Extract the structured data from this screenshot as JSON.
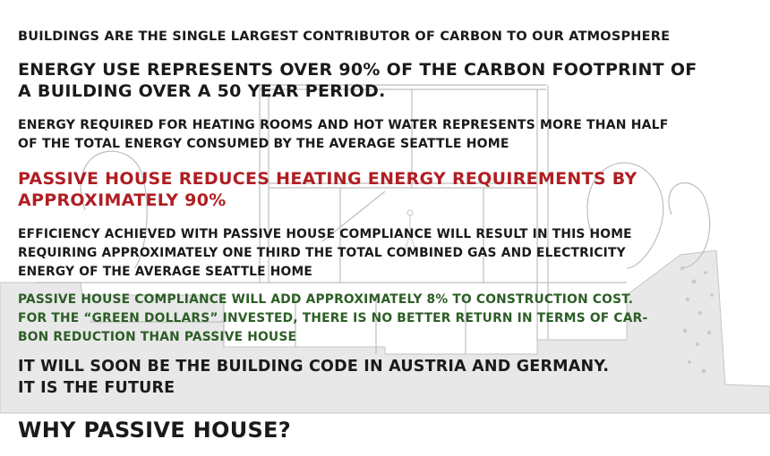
{
  "statements": [
    "BUILDINGS ARE THE SINGLE LARGEST CONTRIBUTOR OF CARBON TO OUR ATMOSPHERE",
    "ENERGY USE REPRESENTS OVER 90% OF THE CARBON FOOTPRINT OF\nA BUILDING OVER A 50 YEAR PERIOD.",
    "ENERGY REQUIRED FOR HEATING ROOMS AND HOT WATER REPRESENTS MORE THAN HALF\nOF THE TOTAL ENERGY CONSUMED BY THE AVERAGE SEATTLE HOME",
    "PASSIVE HOUSE REDUCES HEATING ENERGY REQUIREMENTS BY\nAPPROXIMATELY 90%",
    "EFFICIENCY ACHIEVED WITH PASSIVE HOUSE COMPLIANCE WILL RESULT IN THIS HOME\nREQUIRING APPROXIMATELY ONE THIRD THE TOTAL COMBINED GAS AND ELECTRICITY\nENERGY OF THE AVERAGE SEATTLE HOME",
    "PASSIVE HOUSE COMPLIANCE WILL ADD APPROXIMATELY 8% TO CONSTRUCTION COST.\nFOR THE “GREEN DOLLARS” INVESTED, THERE IS NO BETTER RETURN IN TERMS OF CAR-\nBON REDUCTION THAN PASSIVE HOUSE",
    "IT WILL SOON BE THE BUILDING CODE IN AUSTRIA AND GERMANY.\nIT IS THE FUTURE"
  ],
  "title": "WHY PASSIVE HOUSE?",
  "colors": {
    "text": "#1a1a1a",
    "emphasis_red": "#b01e23",
    "emphasis_green": "#2c5e26",
    "ground": "#e8e8e8",
    "linework": "#bdbdbd"
  }
}
